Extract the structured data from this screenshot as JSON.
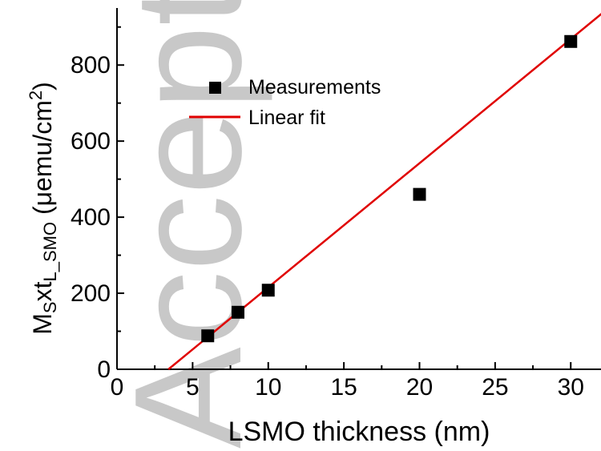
{
  "watermark": "Accepted",
  "chart_data": {
    "type": "scatter",
    "xlabel": "LSMO thickness (nm)",
    "ylabel": {
      "main": "M",
      "sub1": "S",
      "mid": "xt",
      "sub2": "L_SMO",
      "unit_open": " (μemu/cm",
      "unit_sup": "2",
      "unit_close": ")"
    },
    "xlim": [
      0,
      32
    ],
    "ylim": [
      0,
      950
    ],
    "x_ticks": [
      0,
      5,
      10,
      15,
      20,
      25,
      30
    ],
    "y_ticks": [
      0,
      200,
      400,
      600,
      800
    ],
    "legend": {
      "position": "top-left",
      "entries": [
        "Measurements",
        "Linear fit"
      ]
    },
    "series": [
      {
        "name": "Measurements",
        "kind": "points",
        "color": "#000000",
        "marker": "square",
        "x": [
          6,
          8,
          10,
          20,
          30
        ],
        "y": [
          88,
          150,
          208,
          460,
          862
        ]
      },
      {
        "name": "Linear fit",
        "kind": "line",
        "color": "#e00000",
        "x": [
          3.4,
          32.5
        ],
        "y": [
          0,
          950
        ]
      }
    ],
    "grid": false
  }
}
